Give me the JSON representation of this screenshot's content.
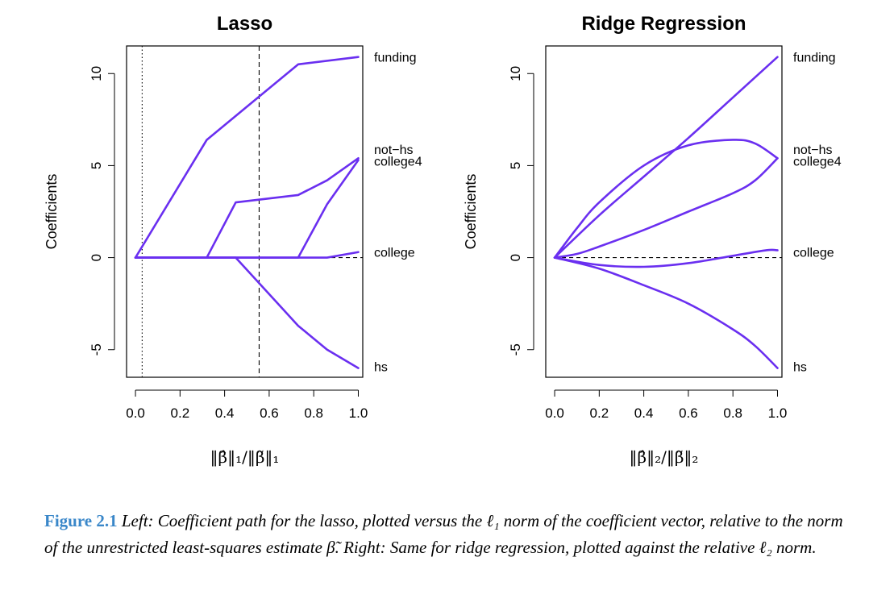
{
  "chart_data": [
    {
      "type": "line",
      "title": "Lasso",
      "xlabel": "‖β̂‖₁/‖β̃‖₁",
      "ylabel": "Coefficients",
      "xlim": [
        -0.04,
        1.02
      ],
      "ylim": [
        -6.5,
        11.5
      ],
      "xticks": [
        "0.0",
        "0.2",
        "0.4",
        "0.6",
        "0.8",
        "1.0"
      ],
      "yticks": [
        "-5",
        "0",
        "5",
        "10"
      ],
      "vlines": [
        {
          "x": 0.03,
          "style": "dotted"
        },
        {
          "x": 0.555,
          "style": "dashed"
        }
      ],
      "series": [
        {
          "name": "funding",
          "x": [
            0.0,
            0.32,
            0.73,
            1.0
          ],
          "y": [
            0.0,
            6.4,
            10.5,
            10.9
          ]
        },
        {
          "name": "not-hs",
          "x": [
            0.0,
            0.32,
            0.45,
            0.73,
            0.86,
            1.0
          ],
          "y": [
            0.0,
            0.0,
            3.0,
            3.4,
            4.2,
            5.4
          ]
        },
        {
          "name": "college4",
          "x": [
            0.0,
            0.73,
            0.86,
            1.0
          ],
          "y": [
            0.0,
            0.0,
            2.9,
            5.3
          ]
        },
        {
          "name": "college",
          "x": [
            0.0,
            0.86,
            1.0
          ],
          "y": [
            0.0,
            0.0,
            0.3
          ]
        },
        {
          "name": "hs",
          "x": [
            0.0,
            0.45,
            0.73,
            0.86,
            1.0
          ],
          "y": [
            0.0,
            0.0,
            -3.7,
            -5.0,
            -6.0
          ]
        }
      ],
      "labels": [
        {
          "text": "funding",
          "y": 10.9
        },
        {
          "text": "not−hs",
          "y": 5.9
        },
        {
          "text": "college4",
          "y": 5.25
        },
        {
          "text": "college",
          "y": 0.3
        },
        {
          "text": "hs",
          "y": -5.9
        }
      ]
    },
    {
      "type": "line",
      "title": "Ridge Regression",
      "xlabel": "‖β̂‖₂/‖β̃‖₂",
      "ylabel": "Coefficients",
      "xlim": [
        -0.04,
        1.02
      ],
      "ylim": [
        -6.5,
        11.5
      ],
      "xticks": [
        "0.0",
        "0.2",
        "0.4",
        "0.6",
        "0.8",
        "1.0"
      ],
      "yticks": [
        "-5",
        "0",
        "5",
        "10"
      ],
      "vlines": [],
      "series": [
        {
          "name": "funding",
          "x": [
            0.0,
            0.2,
            0.4,
            0.6,
            0.8,
            1.0
          ],
          "y": [
            0.0,
            2.3,
            4.4,
            6.5,
            8.7,
            10.9
          ]
        },
        {
          "name": "not-hs",
          "x": [
            0.0,
            0.1,
            0.2,
            0.4,
            0.6,
            0.8,
            0.9,
            1.0
          ],
          "y": [
            0.0,
            1.6,
            3.0,
            5.0,
            6.1,
            6.4,
            6.2,
            5.4
          ]
        },
        {
          "name": "college4",
          "x": [
            0.0,
            0.1,
            0.2,
            0.4,
            0.6,
            0.8,
            0.9,
            1.0
          ],
          "y": [
            0.0,
            0.2,
            0.6,
            1.5,
            2.5,
            3.5,
            4.2,
            5.4
          ]
        },
        {
          "name": "college",
          "x": [
            0.0,
            0.2,
            0.4,
            0.6,
            0.8,
            0.95,
            1.0
          ],
          "y": [
            0.0,
            -0.4,
            -0.5,
            -0.3,
            0.1,
            0.4,
            0.4
          ]
        },
        {
          "name": "hs",
          "x": [
            0.0,
            0.2,
            0.4,
            0.6,
            0.8,
            0.9,
            1.0
          ],
          "y": [
            0.0,
            -0.6,
            -1.5,
            -2.5,
            -3.9,
            -4.8,
            -6.0
          ]
        }
      ],
      "labels": [
        {
          "text": "funding",
          "y": 10.9
        },
        {
          "text": "not−hs",
          "y": 5.9
        },
        {
          "text": "college4",
          "y": 5.25
        },
        {
          "text": "college",
          "y": 0.3
        },
        {
          "text": "hs",
          "y": -5.9
        }
      ]
    }
  ],
  "colors": {
    "line": "#6a2ff0",
    "axis": "#000000",
    "caption_accent": "#3a87c9"
  },
  "caption": {
    "figure": "Figure 2.1",
    "text": "Left: Coefficient path for the lasso, plotted versus the ℓ₁ norm of the coefficient vector, relative to the norm of the unrestricted least-squares estimate β̃. Right: Same for ridge regression, plotted against the relative ℓ₂ norm."
  }
}
